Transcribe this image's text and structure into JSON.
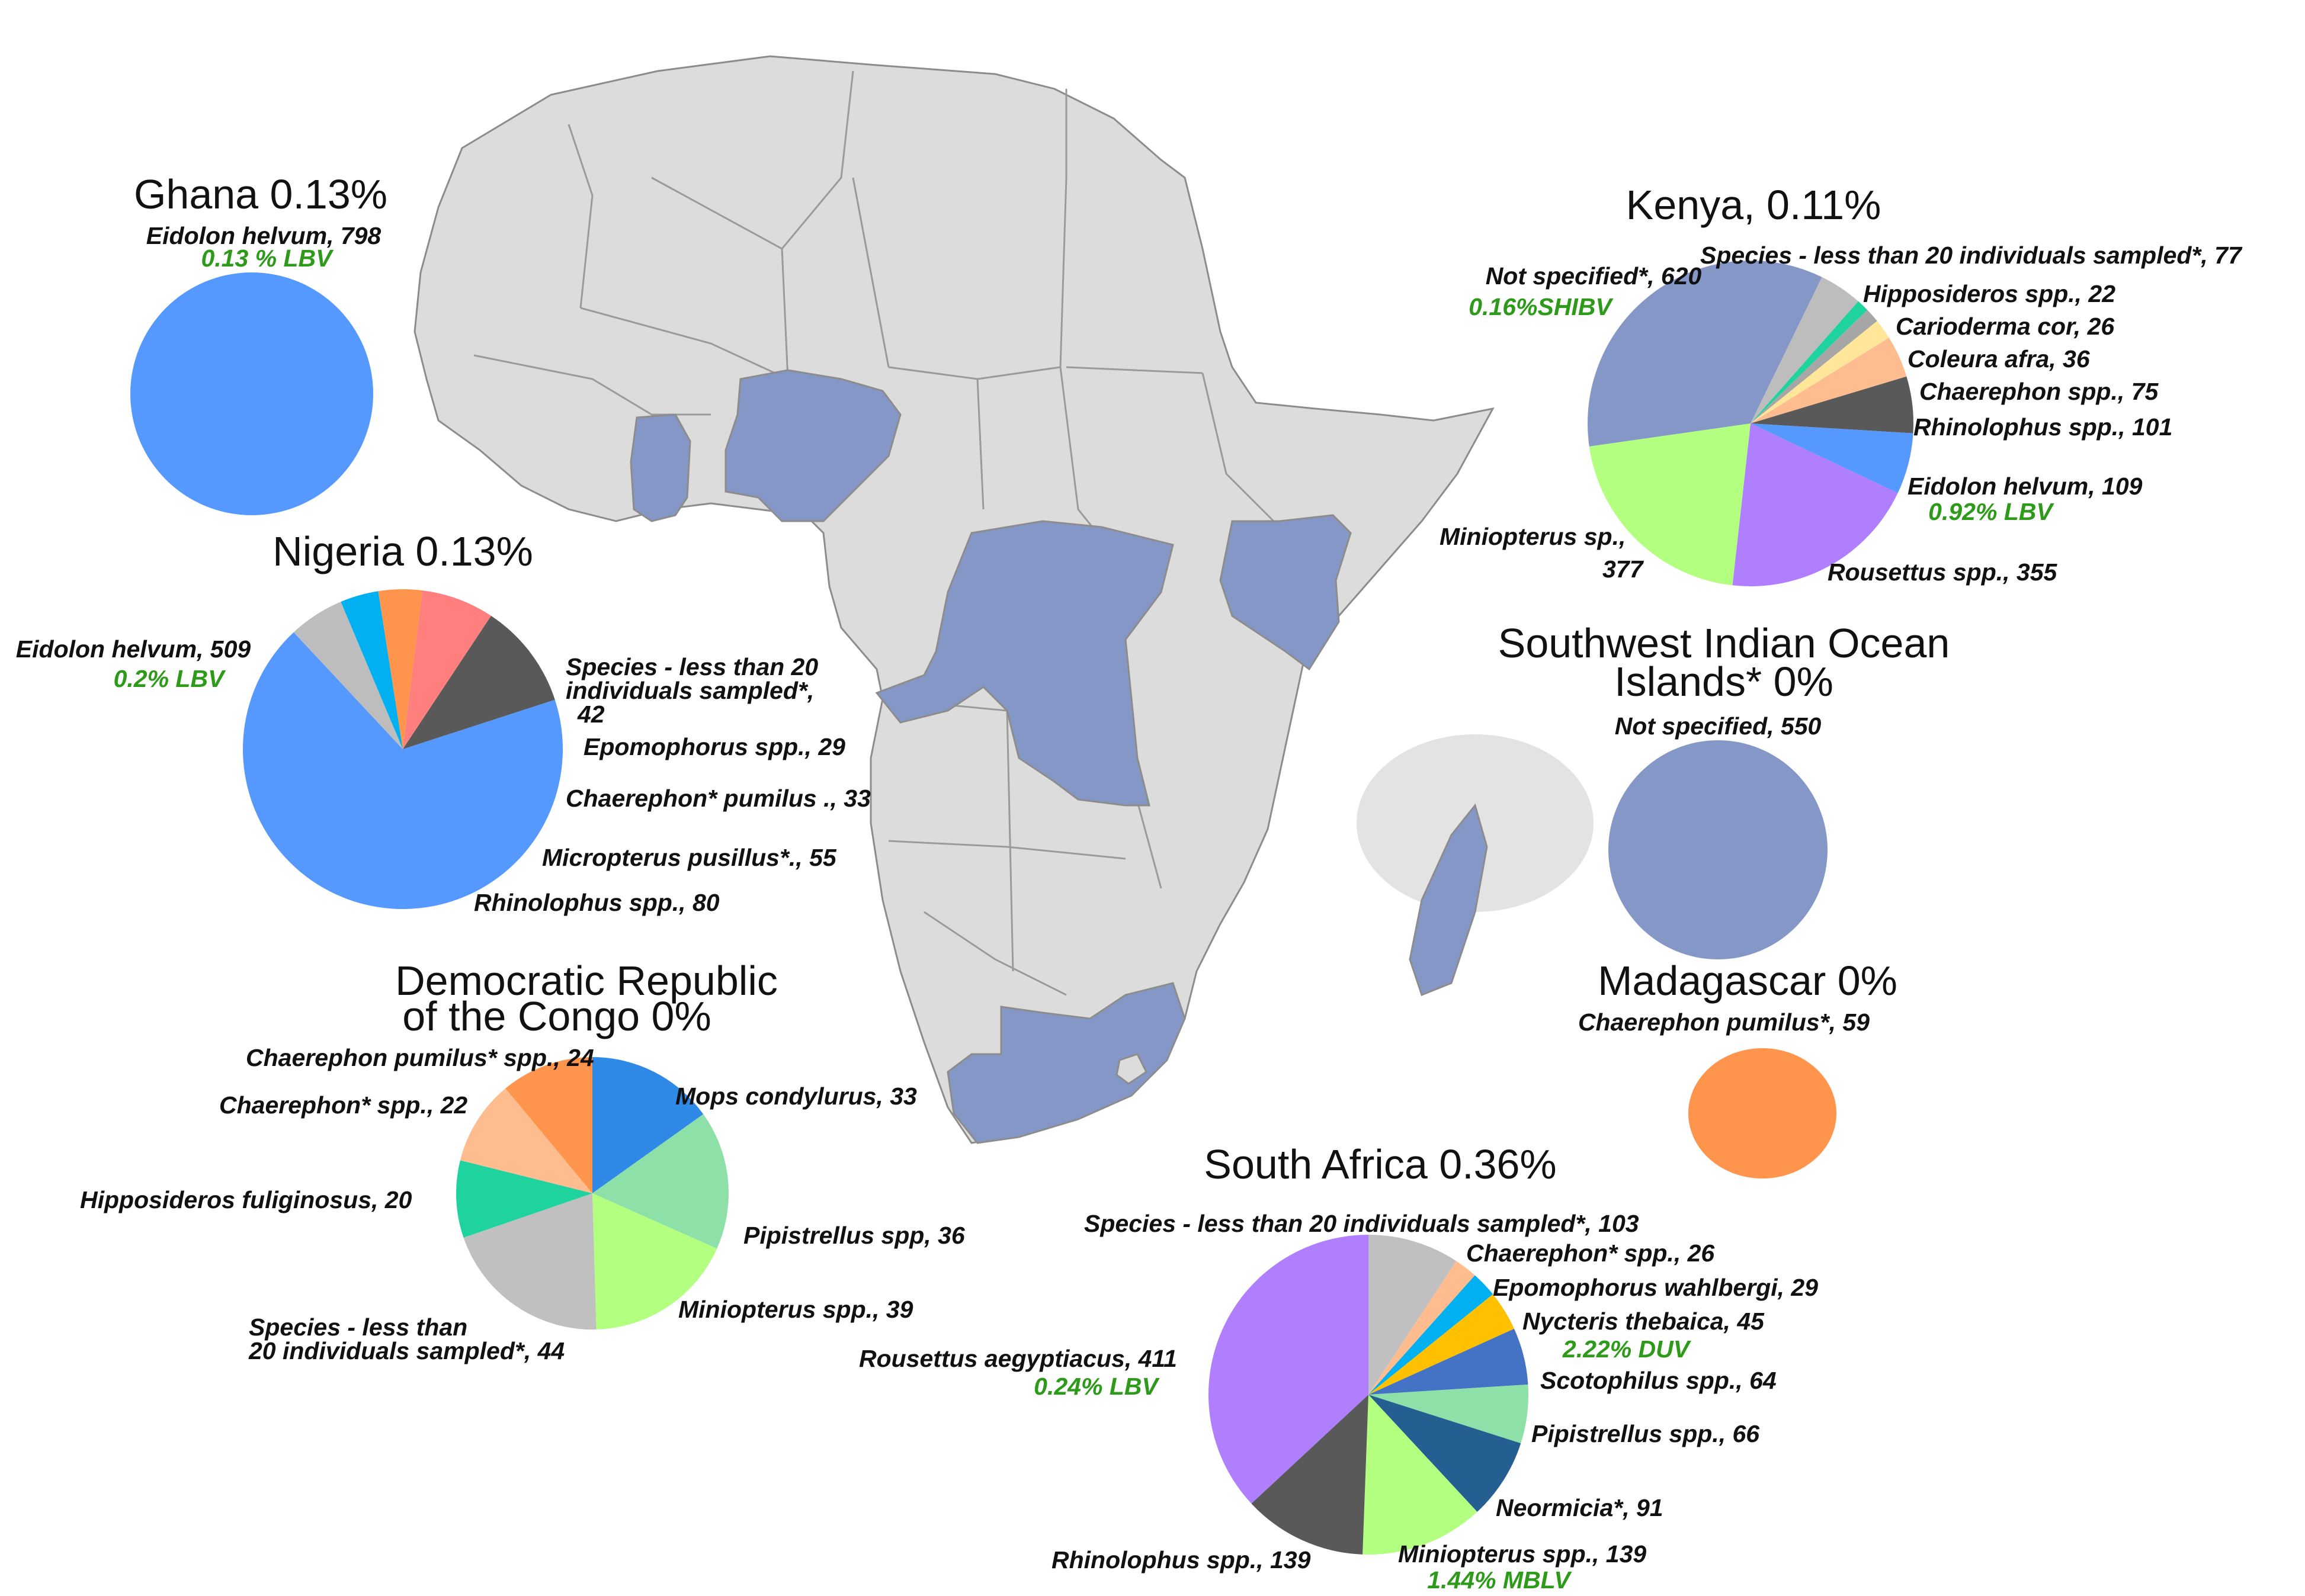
{
  "colors": {
    "land": "#dcdcdc",
    "highlight": "#8497c6",
    "stat_text": "#2e9a1a"
  },
  "chart_data": [
    {
      "type": "pie",
      "title": "Ghana 0.13%",
      "slices": [
        {
          "label": "Eidolon helvum, 798",
          "value": 798,
          "color": "#5599ff",
          "stat": "0.13 % LBV"
        }
      ]
    },
    {
      "type": "pie",
      "title": "Nigeria 0.13%",
      "slices": [
        {
          "label": "Eidolon helvum, 509",
          "value": 509,
          "color": "#5599ff",
          "stat": "0.2% LBV"
        },
        {
          "label": "Species - less than 20 individuals sampled*, 42",
          "value": 42,
          "color": "#bdbdbd"
        },
        {
          "label": "Epomophorus spp., 29",
          "value": 29,
          "color": "#00b0f0"
        },
        {
          "label": "Chaerephon* pumilus ., 33",
          "value": 33,
          "color": "#ff944d"
        },
        {
          "label": "Micropterus pusillus*., 55",
          "value": 55,
          "color": "#ff7f7f"
        },
        {
          "label": "Rhinolophus spp., 80",
          "value": 80,
          "color": "#595959"
        }
      ]
    },
    {
      "type": "pie",
      "title": "Democratic Republic of the Congo 0%",
      "slices": [
        {
          "label": "Mops condylurus, 33",
          "value": 33,
          "color": "#2e8ae6"
        },
        {
          "label": "Pipistrellus spp, 36",
          "value": 36,
          "color": "#8ce0a8"
        },
        {
          "label": "Miniopterus spp., 39",
          "value": 39,
          "color": "#b3ff80"
        },
        {
          "label": "Species - less than 20 individuals sampled*, 44",
          "value": 44,
          "color": "#c0c0c0"
        },
        {
          "label": "Hipposideros fuliginosus, 20",
          "value": 20,
          "color": "#1ed39e"
        },
        {
          "label": "Chaerephon* spp., 22",
          "value": 22,
          "color": "#ffbd8f"
        },
        {
          "label": "Chaerephon pumilus* spp., 24",
          "value": 24,
          "color": "#ff944d"
        }
      ]
    },
    {
      "type": "pie",
      "title": "Kenya, 0.11%",
      "slices": [
        {
          "label": "Species - less than 20 individuals sampled*, 77",
          "value": 77,
          "color": "#bdbdbd"
        },
        {
          "label": "Hipposideros spp., 22",
          "value": 22,
          "color": "#1ed39e"
        },
        {
          "label": "Carioderma cor, 26",
          "value": 26,
          "color": "#a6a6a6"
        },
        {
          "label": "Coleura afra, 36",
          "value": 36,
          "color": "#ffe699"
        },
        {
          "label": "Chaerephon spp., 75",
          "value": 75,
          "color": "#ffbd8f"
        },
        {
          "label": "Rhinolophus spp., 101",
          "value": 101,
          "color": "#595959"
        },
        {
          "label": "Eidolon helvum, 109",
          "value": 109,
          "color": "#5599ff",
          "stat": "0.92% LBV"
        },
        {
          "label": "Rousettus spp., 355",
          "value": 355,
          "color": "#b07fff"
        },
        {
          "label": "Miniopterus sp., 377",
          "value": 377,
          "color": "#b3ff80"
        },
        {
          "label": "Not specified*, 620",
          "value": 620,
          "color": "#8497c6",
          "stat": "0.16%SHIBV"
        }
      ]
    },
    {
      "type": "pie",
      "title": "Southwest Indian Ocean Islands* 0%",
      "slices": [
        {
          "label": "Not specified, 550",
          "value": 550,
          "color": "#8497c6"
        }
      ]
    },
    {
      "type": "pie",
      "title": "Madagascar 0%",
      "slices": [
        {
          "label": "Chaerephon pumilus*, 59",
          "value": 59,
          "color": "#ff944d"
        }
      ]
    },
    {
      "type": "pie",
      "title": "South Africa 0.36%",
      "slices": [
        {
          "label": "Species - less than 20 individuals sampled*, 103",
          "value": 103,
          "color": "#c0c0c0"
        },
        {
          "label": "Chaerephon* spp., 26",
          "value": 26,
          "color": "#ffbd8f"
        },
        {
          "label": "Epomophorus wahlbergi, 29",
          "value": 29,
          "color": "#00b0f0"
        },
        {
          "label": "Nycteris thebaica, 45",
          "value": 45,
          "color": "#ffc000",
          "stat": "2.22% DUV"
        },
        {
          "label": "Scotophilus spp., 64",
          "value": 64,
          "color": "#4472c4"
        },
        {
          "label": "Pipistrellus spp., 66",
          "value": 66,
          "color": "#8ce0a8"
        },
        {
          "label": "Neormicia*, 91",
          "value": 91,
          "color": "#255e91"
        },
        {
          "label": "Miniopterus spp., 139",
          "value": 139,
          "color": "#b3ff80",
          "stat": "1.44% MBLV"
        },
        {
          "label": "Rhinolophus spp., 139",
          "value": 139,
          "color": "#595959"
        },
        {
          "label": "Rousettus aegyptiacus, 411",
          "value": 411,
          "color": "#b07fff",
          "stat": "0.24% LBV"
        }
      ]
    }
  ]
}
